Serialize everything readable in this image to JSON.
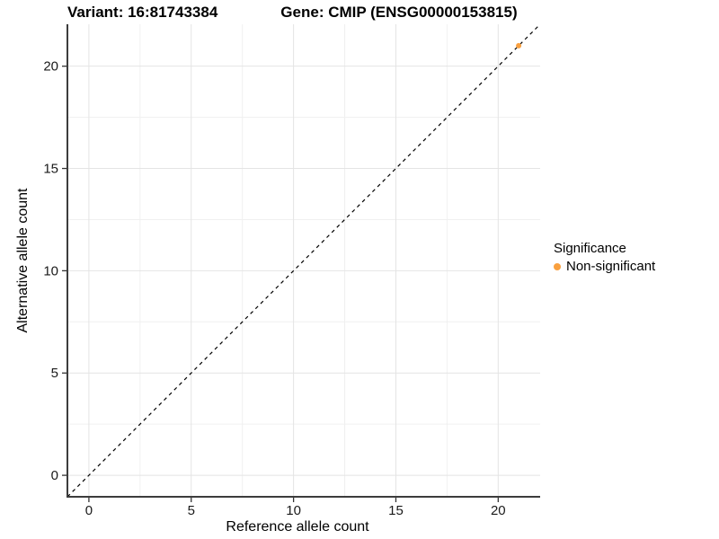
{
  "header": {
    "variant_title": "Variant: 16:81743384",
    "gene_title": "Gene: CMIP (ENSG00000153815)"
  },
  "legend": {
    "title": "Significance",
    "items": [
      {
        "label": "Non-significant",
        "color": "#F9A03F"
      }
    ]
  },
  "chart_data": {
    "type": "scatter",
    "title": "Variant: 16:81743384 / Gene: CMIP (ENSG00000153815)",
    "xlabel": "Reference allele count",
    "ylabel": "Alternative allele count",
    "xlim": [
      -1.05,
      22.05
    ],
    "ylim": [
      -1.05,
      22.05
    ],
    "xticks": [
      0,
      5,
      10,
      15,
      20
    ],
    "yticks": [
      0,
      5,
      10,
      15,
      20
    ],
    "minor_xticks": [
      2.5,
      7.5,
      12.5,
      17.5
    ],
    "minor_yticks": [
      2.5,
      7.5,
      12.5,
      17.5
    ],
    "grid": true,
    "legend_position": "right",
    "series": [
      {
        "name": "Non-significant",
        "color": "#F9A03F",
        "points": [
          [
            21,
            21
          ]
        ]
      }
    ],
    "reference_line": {
      "type": "identity",
      "from": [
        -1.05,
        -1.05
      ],
      "to": [
        22.05,
        22.05
      ],
      "dash": true,
      "color": "#000000"
    }
  },
  "colors": {
    "background": "#FFFFFF",
    "grid_major": "#E4E4E4",
    "grid_minor": "#F0F0F0",
    "axis_line": "#3C3C3C",
    "tick_mark": "#333333",
    "tick_label": "#1A1A1A",
    "point": "#F9A03F"
  }
}
